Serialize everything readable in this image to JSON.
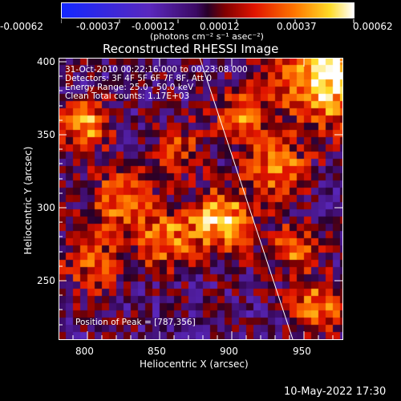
{
  "colorbar": {
    "tick_labels": [
      "-0.00062",
      "-0.00037",
      "-0.00012",
      "0.00012",
      "0.00037",
      "0.00062"
    ],
    "units_label": "(photons cm⁻² s⁻¹ asec⁻²)"
  },
  "title": "Reconstructed RHESSI Image",
  "overlay": {
    "line1": "31-Oct-2010 00:22:16.000 to 00:23:08.000",
    "line2": "Detectors: 3F 4F 5F 6F 7F 8F, Att 0",
    "line3": "Energy Range: 25.0 - 50.0 keV",
    "line4": "Clean     Total counts: 1.17E+03",
    "peak": "Position of Peak = [787,356]"
  },
  "axes": {
    "xlabel": "Heliocentric X (arcsec)",
    "ylabel": "Heliocentric Y (arcsec)",
    "xticks": [
      "800",
      "850",
      "900",
      "950"
    ],
    "yticks": [
      "400",
      "350",
      "300",
      "250"
    ]
  },
  "footer_date": "10-May-2022 17:30",
  "chart_data": {
    "type": "heatmap",
    "title": "Reconstructed RHESSI Image",
    "xlabel": "Heliocentric X (arcsec)",
    "ylabel": "Heliocentric Y (arcsec)",
    "xlim": [
      780,
      975
    ],
    "ylim": [
      205,
      403
    ],
    "colorbar_range": [
      -0.00062,
      0.00062
    ],
    "peak": [
      787,
      356
    ],
    "limb_line": [
      [
        870,
        403
      ],
      [
        943,
        205
      ]
    ]
  }
}
